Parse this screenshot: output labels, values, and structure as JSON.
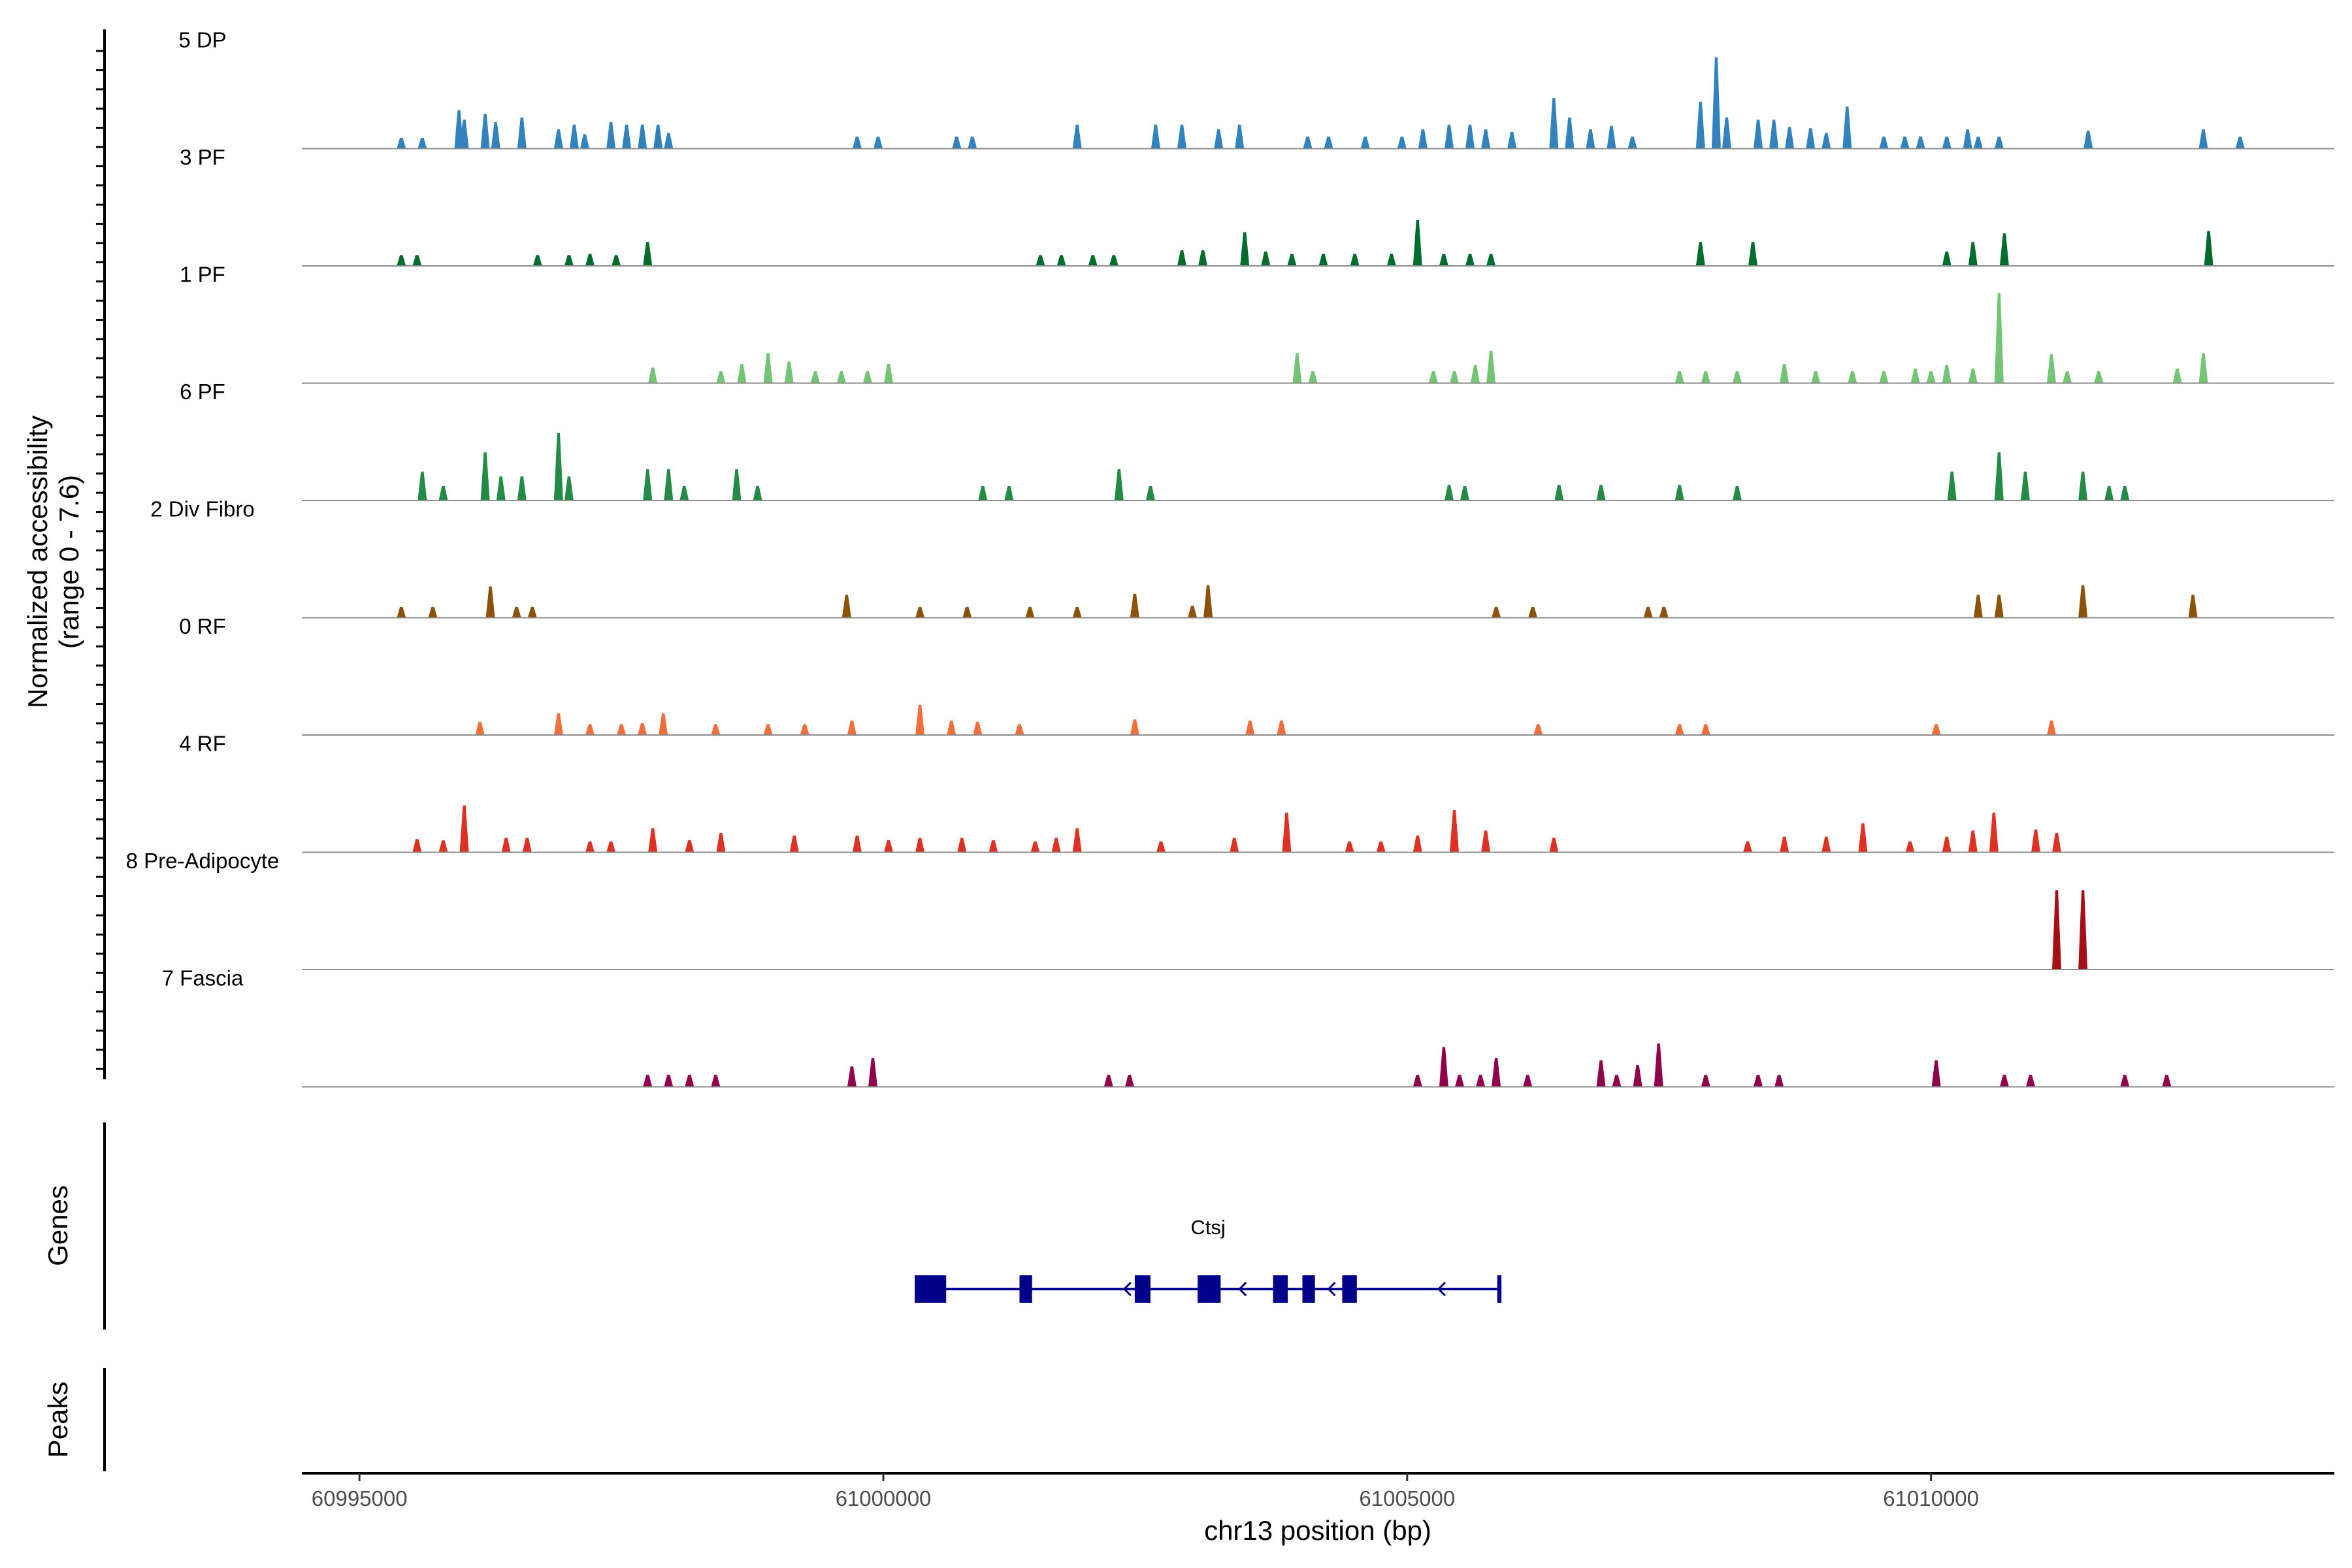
{
  "chart_data": {
    "type": "area",
    "title": "",
    "chromosome": "chr13",
    "xlabel": "chr13 position (bp)",
    "ylabel": "Normalized accessibility",
    "ylabel_range": "(range 0 - 7.6)",
    "xlim": [
      60994450,
      61013850
    ],
    "ylim": [
      0,
      7.6
    ],
    "x_ticks": [
      60995000,
      61000000,
      61005000,
      61010000
    ],
    "x_tick_labels": [
      "60995000",
      "61000000",
      "61005000",
      "61010000"
    ],
    "tracks": [
      {
        "name": "5 DP",
        "color": "#3182bd",
        "peaks": [
          [
            60995400,
            0.9
          ],
          [
            60995600,
            0.9
          ],
          [
            60995950,
            3.2
          ],
          [
            60996000,
            2.4
          ],
          [
            60996200,
            2.9
          ],
          [
            60996300,
            2.2
          ],
          [
            60996550,
            2.6
          ],
          [
            60996900,
            1.6
          ],
          [
            60997050,
            2.0
          ],
          [
            60997150,
            1.2
          ],
          [
            60997400,
            2.2
          ],
          [
            60997550,
            2.0
          ],
          [
            60997700,
            2.0
          ],
          [
            60997850,
            2.0
          ],
          [
            60997950,
            1.3
          ],
          [
            60999750,
            1.0
          ],
          [
            60999950,
            1.0
          ],
          [
            61000700,
            1.0
          ],
          [
            61000850,
            1.0
          ],
          [
            61001850,
            2.0
          ],
          [
            61002600,
            2.0
          ],
          [
            61002850,
            2.0
          ],
          [
            61003200,
            1.6
          ],
          [
            61003400,
            2.0
          ],
          [
            61004050,
            1.0
          ],
          [
            61004250,
            1.0
          ],
          [
            61004600,
            1.0
          ],
          [
            61004950,
            1.0
          ],
          [
            61005150,
            1.6
          ],
          [
            61005400,
            2.0
          ],
          [
            61005600,
            2.0
          ],
          [
            61005750,
            1.6
          ],
          [
            61006000,
            1.4
          ],
          [
            61006400,
            4.2
          ],
          [
            61006550,
            2.6
          ],
          [
            61006750,
            1.6
          ],
          [
            61006950,
            1.9
          ],
          [
            61007150,
            1.0
          ],
          [
            61007800,
            3.9
          ],
          [
            61007950,
            7.6
          ],
          [
            61008050,
            2.6
          ],
          [
            61008350,
            2.4
          ],
          [
            61008500,
            2.4
          ],
          [
            61008650,
            1.8
          ],
          [
            61008850,
            1.7
          ],
          [
            61009000,
            1.3
          ],
          [
            61009200,
            3.5
          ],
          [
            61009550,
            1.0
          ],
          [
            61009750,
            1.0
          ],
          [
            61009900,
            1.0
          ],
          [
            61010150,
            1.0
          ],
          [
            61010350,
            1.6
          ],
          [
            61010450,
            1.0
          ],
          [
            61010650,
            1.0
          ],
          [
            61011500,
            1.5
          ],
          [
            61012600,
            1.6
          ],
          [
            61012950,
            1.0
          ]
        ]
      },
      {
        "name": "3 PF",
        "color": "#006d2c",
        "peaks": [
          [
            60995400,
            0.9
          ],
          [
            60995550,
            0.9
          ],
          [
            60996700,
            0.9
          ],
          [
            60997000,
            0.9
          ],
          [
            60997200,
            1.0
          ],
          [
            60997450,
            0.9
          ],
          [
            60997750,
            2.0
          ],
          [
            61001500,
            0.9
          ],
          [
            61001700,
            0.9
          ],
          [
            61002000,
            0.9
          ],
          [
            61002200,
            0.9
          ],
          [
            61002850,
            1.3
          ],
          [
            61003050,
            1.3
          ],
          [
            61003450,
            2.8
          ],
          [
            61003650,
            1.2
          ],
          [
            61003900,
            1.0
          ],
          [
            61004200,
            1.0
          ],
          [
            61004500,
            1.0
          ],
          [
            61004850,
            1.0
          ],
          [
            61005100,
            3.8
          ],
          [
            61005350,
            1.0
          ],
          [
            61005600,
            1.0
          ],
          [
            61005800,
            1.0
          ],
          [
            61007800,
            2.0
          ],
          [
            61008300,
            2.0
          ],
          [
            61010150,
            1.2
          ],
          [
            61010400,
            2.0
          ],
          [
            61010700,
            2.7
          ],
          [
            61012650,
            2.9
          ]
        ]
      },
      {
        "name": "1 PF",
        "color": "#74c476",
        "peaks": [
          [
            60997800,
            1.3
          ],
          [
            60998450,
            1.0
          ],
          [
            60998650,
            1.6
          ],
          [
            60998900,
            2.5
          ],
          [
            60999100,
            1.8
          ],
          [
            60999350,
            1.0
          ],
          [
            60999600,
            1.0
          ],
          [
            60999850,
            1.0
          ],
          [
            61000050,
            1.6
          ],
          [
            61003950,
            2.5
          ],
          [
            61004100,
            1.0
          ],
          [
            61005250,
            1.0
          ],
          [
            61005450,
            1.0
          ],
          [
            61005650,
            1.5
          ],
          [
            61005800,
            2.7
          ],
          [
            61007600,
            1.0
          ],
          [
            61007850,
            1.0
          ],
          [
            61008150,
            1.0
          ],
          [
            61008600,
            1.6
          ],
          [
            61008900,
            1.0
          ],
          [
            61009250,
            1.0
          ],
          [
            61009550,
            1.0
          ],
          [
            61009850,
            1.2
          ],
          [
            61010000,
            1.0
          ],
          [
            61010150,
            1.5
          ],
          [
            61010400,
            1.2
          ],
          [
            61010650,
            7.5
          ],
          [
            61011150,
            2.4
          ],
          [
            61011300,
            1.0
          ],
          [
            61011600,
            1.0
          ],
          [
            61012350,
            1.2
          ],
          [
            61012600,
            2.5
          ]
        ]
      },
      {
        "name": "6 PF",
        "color": "#238b45",
        "peaks": [
          [
            60995600,
            2.4
          ],
          [
            60995800,
            1.2
          ],
          [
            60996200,
            4.0
          ],
          [
            60996350,
            2.0
          ],
          [
            60996550,
            2.0
          ],
          [
            60996900,
            5.6
          ],
          [
            60997000,
            2.0
          ],
          [
            60997750,
            2.6
          ],
          [
            60997950,
            2.6
          ],
          [
            60998100,
            1.2
          ],
          [
            60998600,
            2.6
          ],
          [
            60998800,
            1.2
          ],
          [
            61000950,
            1.2
          ],
          [
            61001200,
            1.2
          ],
          [
            61002250,
            2.6
          ],
          [
            61002550,
            1.2
          ],
          [
            61005400,
            1.3
          ],
          [
            61005550,
            1.2
          ],
          [
            61006450,
            1.3
          ],
          [
            61006850,
            1.3
          ],
          [
            61007600,
            1.3
          ],
          [
            61008150,
            1.2
          ],
          [
            61010200,
            2.4
          ],
          [
            61010650,
            4.0
          ],
          [
            61010900,
            2.4
          ],
          [
            61011450,
            2.4
          ],
          [
            61011700,
            1.2
          ],
          [
            61011850,
            1.2
          ]
        ]
      },
      {
        "name": "2 Div Fibro",
        "color": "#8c510a",
        "peaks": [
          [
            60995400,
            0.9
          ],
          [
            60995700,
            0.9
          ],
          [
            60996250,
            2.6
          ],
          [
            60996500,
            0.9
          ],
          [
            60996650,
            0.9
          ],
          [
            60999650,
            1.9
          ],
          [
            61000350,
            0.9
          ],
          [
            61000800,
            0.9
          ],
          [
            61001400,
            0.9
          ],
          [
            61001850,
            0.9
          ],
          [
            61002400,
            2.0
          ],
          [
            61002950,
            1.0
          ],
          [
            61003100,
            2.7
          ],
          [
            61005850,
            0.9
          ],
          [
            61006200,
            0.9
          ],
          [
            61007300,
            0.9
          ],
          [
            61007450,
            0.9
          ],
          [
            61010450,
            1.9
          ],
          [
            61010650,
            1.9
          ],
          [
            61011450,
            2.7
          ],
          [
            61012500,
            1.9
          ]
        ]
      },
      {
        "name": "0 RF",
        "color": "#f16d3c",
        "peaks": [
          [
            60996150,
            1.1
          ],
          [
            60996900,
            1.8
          ],
          [
            60997200,
            0.9
          ],
          [
            60997500,
            0.9
          ],
          [
            60997700,
            1.0
          ],
          [
            60997900,
            1.8
          ],
          [
            60998400,
            0.9
          ],
          [
            60998900,
            0.9
          ],
          [
            60999250,
            0.9
          ],
          [
            60999700,
            1.2
          ],
          [
            61000350,
            2.5
          ],
          [
            61000650,
            1.2
          ],
          [
            61000900,
            1.1
          ],
          [
            61001300,
            0.9
          ],
          [
            61002400,
            1.3
          ],
          [
            61003500,
            1.2
          ],
          [
            61003800,
            1.2
          ],
          [
            61006250,
            0.9
          ],
          [
            61007600,
            0.9
          ],
          [
            61007850,
            0.9
          ],
          [
            61010050,
            0.9
          ],
          [
            61011150,
            1.2
          ]
        ]
      },
      {
        "name": "4 RF",
        "color": "#de3123",
        "peaks": [
          [
            60995550,
            1.1
          ],
          [
            60995800,
            1.0
          ],
          [
            60996000,
            3.9
          ],
          [
            60996400,
            1.2
          ],
          [
            60996600,
            1.2
          ],
          [
            60997200,
            0.9
          ],
          [
            60997400,
            0.9
          ],
          [
            60997800,
            2.0
          ],
          [
            60998150,
            1.0
          ],
          [
            60998450,
            1.6
          ],
          [
            60999150,
            1.4
          ],
          [
            60999750,
            1.4
          ],
          [
            61000050,
            1.0
          ],
          [
            61000350,
            1.2
          ],
          [
            61000750,
            1.2
          ],
          [
            61001050,
            1.0
          ],
          [
            61001450,
            0.9
          ],
          [
            61001650,
            1.2
          ],
          [
            61001850,
            2.0
          ],
          [
            61002650,
            0.9
          ],
          [
            61003350,
            1.2
          ],
          [
            61003850,
            3.3
          ],
          [
            61004450,
            0.9
          ],
          [
            61004750,
            0.9
          ],
          [
            61005100,
            1.4
          ],
          [
            61005450,
            3.5
          ],
          [
            61005750,
            1.8
          ],
          [
            61006400,
            1.2
          ],
          [
            61008250,
            0.9
          ],
          [
            61008600,
            1.3
          ],
          [
            61009000,
            1.3
          ],
          [
            61009350,
            2.4
          ],
          [
            61009800,
            0.9
          ],
          [
            61010150,
            1.3
          ],
          [
            61010400,
            1.8
          ],
          [
            61010600,
            3.3
          ],
          [
            61011000,
            1.9
          ],
          [
            61011200,
            1.6
          ]
        ]
      },
      {
        "name": "8 Pre-Adipocyte",
        "color": "#a50f15",
        "peaks": [
          [
            61011200,
            6.6
          ],
          [
            61011450,
            6.6
          ]
        ]
      },
      {
        "name": "7 Fascia",
        "color": "#91004b",
        "peaks": [
          [
            60997750,
            1.0
          ],
          [
            60997950,
            1.0
          ],
          [
            60998150,
            1.0
          ],
          [
            60998400,
            1.0
          ],
          [
            60999700,
            1.7
          ],
          [
            60999900,
            2.4
          ],
          [
            61002150,
            1.0
          ],
          [
            61002350,
            1.0
          ],
          [
            61005100,
            1.0
          ],
          [
            61005350,
            3.3
          ],
          [
            61005500,
            1.0
          ],
          [
            61005700,
            1.0
          ],
          [
            61005850,
            2.4
          ],
          [
            61006150,
            1.0
          ],
          [
            61006850,
            2.2
          ],
          [
            61007000,
            1.0
          ],
          [
            61007200,
            1.8
          ],
          [
            61007400,
            3.6
          ],
          [
            61007850,
            1.0
          ],
          [
            61008350,
            1.0
          ],
          [
            61008550,
            1.0
          ],
          [
            61010050,
            2.2
          ],
          [
            61010700,
            1.0
          ],
          [
            61010950,
            1.0
          ],
          [
            61011850,
            1.0
          ],
          [
            61012250,
            1.0
          ]
        ]
      }
    ],
    "gene_track_label": "Genes",
    "genes": [
      {
        "name": "Ctsj",
        "color": "#00008b",
        "strand": "-",
        "start": 61000300,
        "end": 61005900,
        "exons": [
          [
            61000300,
            61000600
          ],
          [
            61001300,
            61001420
          ],
          [
            61002400,
            61002550
          ],
          [
            61003000,
            61003220
          ],
          [
            61003720,
            61003860
          ],
          [
            61004000,
            61004120
          ],
          [
            61004380,
            61004520
          ],
          [
            61005860,
            61005900
          ]
        ],
        "arrows": [
          61001300,
          61002300,
          61003400,
          61004250,
          61005300
        ]
      }
    ],
    "peaks_track_label": "Peaks"
  }
}
